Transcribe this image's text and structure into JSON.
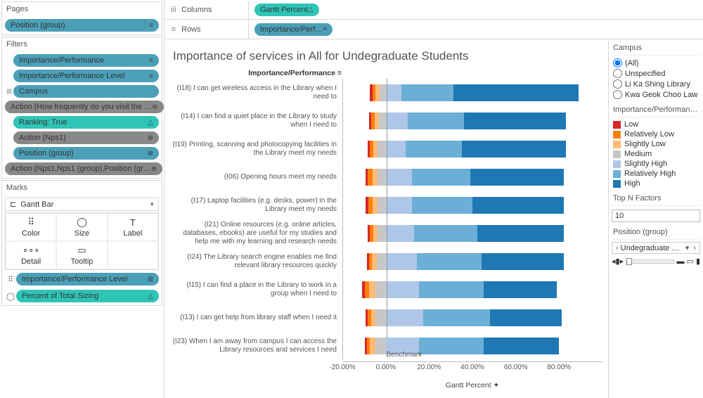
{
  "left": {
    "pages": {
      "label": "Pages",
      "pill": "Position (group)"
    },
    "filters": {
      "label": "Filters",
      "items": [
        {
          "t": "Importance/Performance",
          "c": "pill-blue",
          "ico": "≡",
          "r": ""
        },
        {
          "t": "Importance/Performance Level",
          "c": "pill-blue",
          "ico": "≡",
          "r": ""
        },
        {
          "t": "Campus",
          "c": "pill-blue",
          "ico": "",
          "r": "⊞"
        },
        {
          "t": "Action (How frequently do you visit the …",
          "c": "pill-grey",
          "ico": "⊗",
          "r": ""
        },
        {
          "t": "Ranking: True",
          "c": "pill-green",
          "ico": "△",
          "r": ""
        },
        {
          "t": "Action (Nps1)",
          "c": "pill-grey",
          "ico": "⊗",
          "r": ""
        },
        {
          "t": "Position (group)",
          "c": "pill-blue",
          "ico": "⊗",
          "r": ""
        },
        {
          "t": "Action (Nps1,Nps1 (group),Position (gr…",
          "c": "pill-grey",
          "ico": "⊗",
          "r": ""
        }
      ]
    },
    "marks": {
      "label": "Marks",
      "type": "Gantt Bar",
      "cells": [
        {
          "ico": "⠿",
          "l": "Color"
        },
        {
          "ico": "◯",
          "l": "Size"
        },
        {
          "ico": "T",
          "l": "Label"
        },
        {
          "ico": "∘∘∘",
          "l": "Detail"
        },
        {
          "ico": "▭",
          "l": "Tooltip"
        },
        {
          "ico": "",
          "l": ""
        }
      ],
      "rows": [
        {
          "ico": "⠿",
          "t": "Importance/Performance Level",
          "c": "pill-blue",
          "tail": "⊞"
        },
        {
          "ico": "◯",
          "t": "Percent of Total Sizing",
          "c": "pill-green",
          "tail": "△"
        }
      ]
    }
  },
  "shelves": {
    "columns": {
      "label": "Columns",
      "pill": "Gantt Percent",
      "c": "pill-green",
      "ico": "△"
    },
    "rows": {
      "label": "Rows",
      "pill": "Importance/Perf…",
      "c": "pill-blue",
      "ico": "≡"
    }
  },
  "chart": {
    "title": "Importance of services in All for Undegraduate Students",
    "subhead": "Importance/Performance ≡",
    "benchmark_label": "Benchmark",
    "x_title": "Gantt Percent ✦",
    "x_ticks": [
      {
        "pos": 0,
        "l": "-20.00%"
      },
      {
        "pos": 0.167,
        "l": "0.00%"
      },
      {
        "pos": 0.333,
        "l": "20.00%"
      },
      {
        "pos": 0.5,
        "l": "40.00%"
      },
      {
        "pos": 0.667,
        "l": "60.00%"
      },
      {
        "pos": 0.833,
        "l": "80.00%"
      }
    ],
    "zero_pos": 0.167,
    "colors": {
      "Low": "#d62728",
      "Relatively Low": "#ff7f0e",
      "Slightly Low": "#ffbb78",
      "Medium": "#c7c7c7",
      "Slightly High": "#aec7e8",
      "Relatively High": "#6baed6",
      "High": "#1f77b4"
    },
    "levels": [
      "Low",
      "Relatively Low",
      "Slightly Low",
      "Medium",
      "Slightly High",
      "Relatively High",
      "High"
    ],
    "rows": [
      {
        "label": "(I18) I can get wireless access in the Library when I need to",
        "segs": [
          1,
          1.5,
          2,
          3,
          7,
          24,
          58
        ]
      },
      {
        "label": "(I14) I can find a quiet place in the Library to study when I need to",
        "segs": [
          1,
          1.5,
          2,
          3.5,
          10,
          26,
          47
        ]
      },
      {
        "label": "(I19) Printing, scanning and photocopying facilities in the Library meet my needs",
        "segs": [
          1,
          1.5,
          2,
          4,
          9,
          26,
          48
        ]
      },
      {
        "label": "(I06) Opening hours meet my needs",
        "segs": [
          1.2,
          2,
          2.5,
          4,
          12,
          27,
          43
        ]
      },
      {
        "label": "(I17) Laptop facilities (e.g. desks, power) in the Library meet my needs",
        "segs": [
          1.2,
          1.8,
          2.5,
          4,
          12,
          28,
          42
        ]
      },
      {
        "label": "(I21) Online resources (e.g. online articles, databases, ebooks) are useful for my studies and help me with my learning and research needs",
        "segs": [
          1,
          1.5,
          2,
          4,
          13,
          29,
          40
        ]
      },
      {
        "label": "(I24) The Library search engine enables me find relevant library resources quickly",
        "segs": [
          1,
          1.5,
          2,
          4.5,
          14,
          30,
          38
        ]
      },
      {
        "label": "(I15) I can find a place in the Library to work in a group when I need to",
        "segs": [
          1.3,
          2,
          3,
          5,
          15,
          30,
          34
        ]
      },
      {
        "label": "(I13) I can get help from library staff when I need it",
        "segs": [
          1,
          1.5,
          2,
          5,
          17,
          31,
          33
        ]
      },
      {
        "label": "(I23) When I am away from campus I can access the Library resources and services I need",
        "segs": [
          1,
          1.5,
          2.5,
          5,
          15,
          30,
          35
        ]
      }
    ]
  },
  "side": {
    "campus": {
      "label": "Campus",
      "opts": [
        {
          "l": "(All)",
          "sel": true
        },
        {
          "l": "Unspecified",
          "sel": false
        },
        {
          "l": "Li Ka Shing Library",
          "sel": false
        },
        {
          "l": "Kwa Geok Choo Law …",
          "sel": false
        }
      ]
    },
    "legend": {
      "label": "Importance/Performan…"
    },
    "topn": {
      "label": "Top N Factors",
      "value": "10"
    },
    "pos": {
      "label": "Position (group)",
      "value": "Undegraduate St…"
    }
  }
}
